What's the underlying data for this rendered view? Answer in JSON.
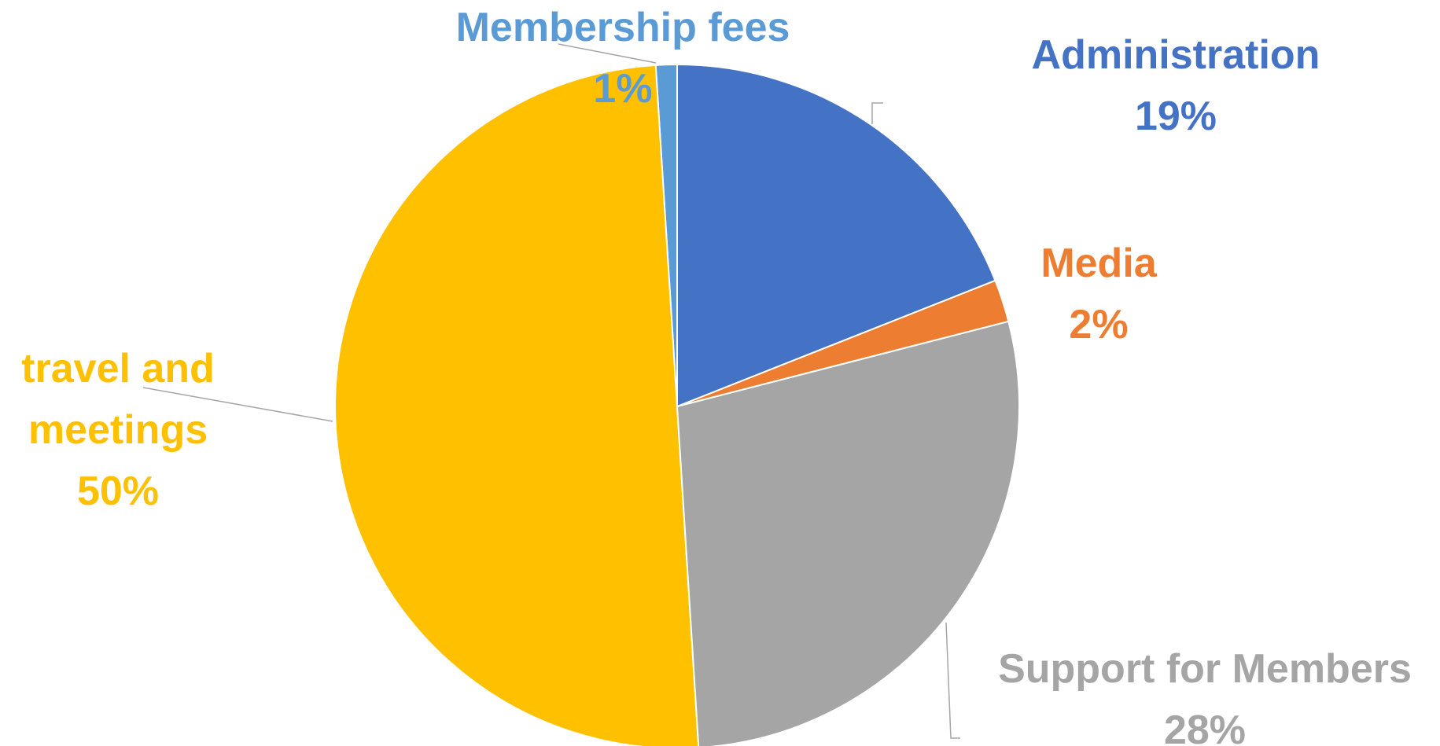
{
  "chart_data": {
    "type": "pie",
    "categories": [
      "Administration",
      "Media",
      "Support for Members",
      "travel and meetings",
      "Membership fees"
    ],
    "values": [
      19,
      2,
      28,
      50,
      1
    ],
    "value_labels": [
      "19%",
      "2%",
      "28%",
      "50%",
      "1%"
    ],
    "colors": [
      "#4472c4",
      "#ed7d31",
      "#a5a5a5",
      "#ffc000",
      "#5b9bd5"
    ]
  }
}
